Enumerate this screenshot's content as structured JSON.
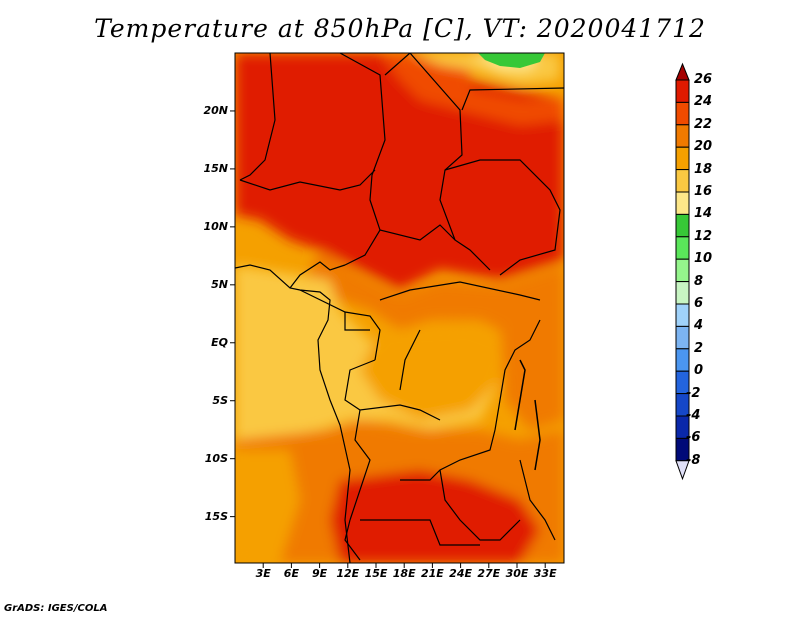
{
  "title": "Temperature at 850hPa [C], VT: 2020041712",
  "credit": "GrADS: IGES/COLA",
  "map": {
    "region": "Central and Southern Africa",
    "lon_range": [
      0,
      35
    ],
    "lat_range": [
      -19,
      25
    ],
    "lat_labels": [
      "20N",
      "15N",
      "10N",
      "5N",
      "EQ",
      "5S",
      "10S",
      "15S"
    ],
    "lon_labels": [
      "3E",
      "6E",
      "9E",
      "12E",
      "15E",
      "18E",
      "21E",
      "24E",
      "27E",
      "30E",
      "33E"
    ]
  },
  "colorbar": {
    "labels": [
      "26",
      "24",
      "22",
      "20",
      "18",
      "16",
      "14",
      "12",
      "10",
      "8",
      "6",
      "4",
      "2",
      "0",
      "-2",
      "-4",
      "-6",
      "-8"
    ],
    "colors": [
      "#a50000",
      "#e01a00",
      "#f04b00",
      "#f07a00",
      "#f5a000",
      "#fac842",
      "#fde789",
      "#37c837",
      "#5ae65a",
      "#95f58c",
      "#c8f5c3",
      "#a0d2fa",
      "#7cb4f2",
      "#4b96f0",
      "#2364de",
      "#1547c8",
      "#0a28aa",
      "#000a78",
      "#e0e0f8"
    ]
  }
}
